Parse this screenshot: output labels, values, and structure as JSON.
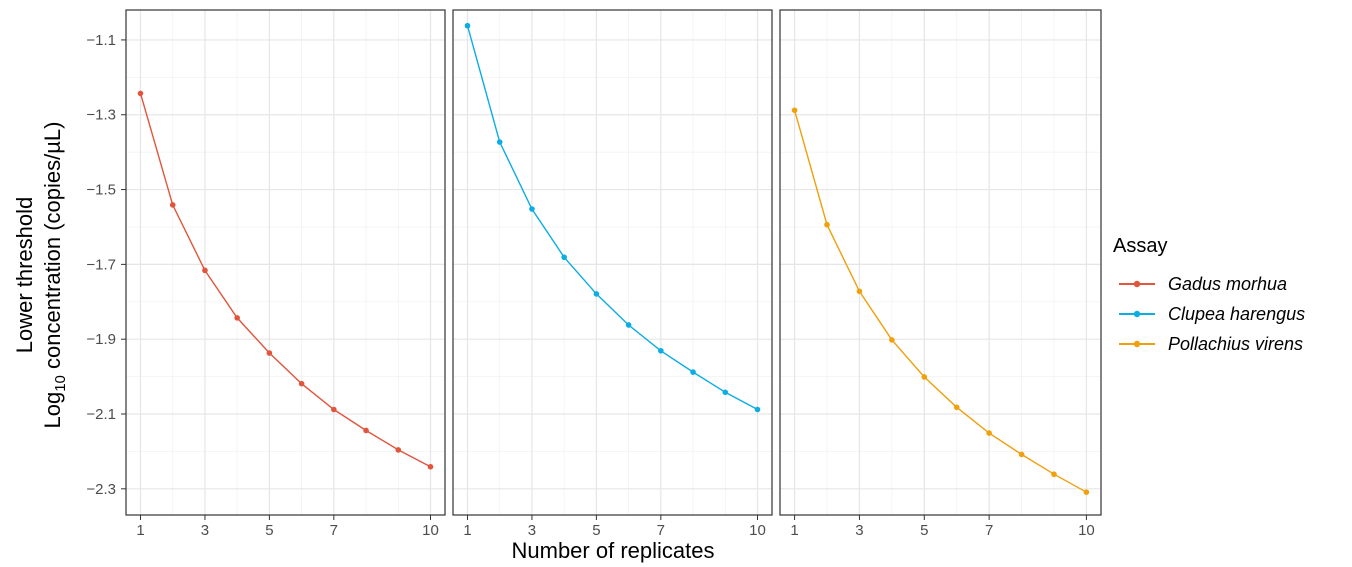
{
  "chart_data": {
    "type": "line",
    "facets": 3,
    "x_values": [
      1,
      2,
      3,
      4,
      5,
      6,
      7,
      8,
      9,
      10
    ],
    "x_ticks": [
      1,
      3,
      5,
      7,
      10
    ],
    "y_ticks": [
      -1.1,
      -1.3,
      -1.5,
      -1.7,
      -1.9,
      -2.1,
      -2.3
    ],
    "y_tick_labels": [
      "−1.1",
      "−1.3",
      "−1.5",
      "−1.7",
      "−1.9",
      "−2.1",
      "−2.3"
    ],
    "ylim": [
      -2.37,
      -1.02
    ],
    "xlim": [
      0.55,
      10.45
    ],
    "xlabel": "Number of replicates",
    "ylabel_line1": "Lower threshold",
    "ylabel_line2_prefix": "Log",
    "ylabel_line2_sub": "10",
    "ylabel_line2_suffix": " concentration (copies/µL)",
    "grid": true,
    "legend_title": "Assay",
    "legend_position": "right",
    "series": [
      {
        "name": "Gadus morhua",
        "color": "#E1553D",
        "values": [
          -1.243,
          -1.541,
          -1.716,
          -1.843,
          -1.937,
          -2.019,
          -2.088,
          -2.144,
          -2.196,
          -2.241
        ]
      },
      {
        "name": "Clupea harengus",
        "color": "#0BADE4",
        "values": [
          -1.062,
          -1.373,
          -1.552,
          -1.681,
          -1.779,
          -1.862,
          -1.931,
          -1.988,
          -2.042,
          -2.088
        ]
      },
      {
        "name": "Pollachius virens",
        "color": "#F0A00C",
        "values": [
          -1.288,
          -1.594,
          -1.772,
          -1.902,
          -2.001,
          -2.082,
          -2.151,
          -2.208,
          -2.261,
          -2.309
        ]
      }
    ]
  }
}
